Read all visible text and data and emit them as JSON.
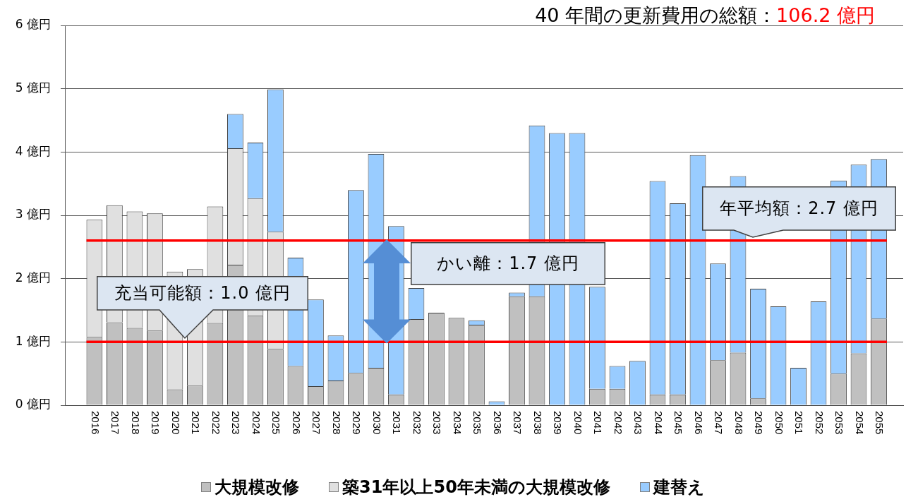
{
  "chart_data": {
    "type": "bar",
    "title": "40 年間の更新費用の総額：106.2 億円",
    "categories": [
      "2016",
      "2017",
      "2018",
      "2019",
      "2020",
      "2021",
      "2022",
      "2023",
      "2024",
      "2025",
      "2026",
      "2027",
      "2028",
      "2029",
      "2030",
      "2031",
      "2032",
      "2033",
      "2034",
      "2035",
      "2036",
      "2037",
      "2038",
      "2039",
      "2040",
      "2041",
      "2042",
      "2043",
      "2044",
      "2045",
      "2046",
      "2047",
      "2048",
      "2049",
      "2050",
      "2051",
      "2052",
      "2053",
      "2054",
      "2055"
    ],
    "series": [
      {
        "name": "大規模改修",
        "color": "#c0c0c0",
        "values": [
          1.08,
          1.31,
          1.22,
          1.18,
          0.25,
          0.31,
          1.3,
          2.22,
          1.42,
          0.89,
          0.62,
          0.3,
          0.39,
          0.51,
          0.59,
          0.17,
          1.36,
          1.46,
          1.38,
          1.27,
          null,
          1.72,
          1.72,
          null,
          null,
          0.26,
          0.26,
          null,
          0.17,
          0.17,
          null,
          0.71,
          0.83,
          0.11,
          null,
          null,
          null,
          0.5,
          0.82,
          1.37
        ]
      },
      {
        "name": "築31年以上50年未満の大規模改修",
        "color": "#e0e0e0",
        "values": [
          1.85,
          1.85,
          1.84,
          1.85,
          1.86,
          1.84,
          1.84,
          1.84,
          1.85,
          1.85,
          null,
          null,
          null,
          null,
          null,
          null,
          null,
          null,
          null,
          null,
          null,
          null,
          null,
          null,
          null,
          null,
          null,
          null,
          null,
          null,
          null,
          null,
          null,
          null,
          null,
          null,
          null,
          null,
          null,
          null
        ]
      },
      {
        "name": "建替え",
        "color": "#99ccff",
        "values": [
          null,
          null,
          null,
          null,
          null,
          null,
          null,
          0.54,
          0.88,
          2.25,
          1.71,
          1.37,
          0.71,
          2.89,
          3.38,
          2.66,
          0.49,
          null,
          null,
          0.07,
          0.06,
          0.06,
          2.7,
          4.3,
          4.3,
          1.61,
          0.36,
          0.7,
          3.37,
          3.02,
          3.95,
          1.53,
          2.79,
          1.73,
          1.56,
          0.59,
          1.64,
          3.05,
          2.98,
          2.52
        ]
      }
    ],
    "stacked": true,
    "ylim": [
      0,
      6
    ],
    "yticks": [
      {
        "value": 0,
        "label": "0 億円"
      },
      {
        "value": 1,
        "label": "1 億円"
      },
      {
        "value": 2,
        "label": "2 億円"
      },
      {
        "value": 3,
        "label": "3 億円"
      },
      {
        "value": 4,
        "label": "4 億円"
      },
      {
        "value": 5,
        "label": "5 億円"
      },
      {
        "value": 6,
        "label": "6 億円"
      }
    ],
    "grid": "y",
    "legend": "bottom",
    "ref_lines": [
      {
        "axis": "y",
        "value": 1.0,
        "label": "充当可能額：1.0 億円",
        "color": "#ff0000"
      },
      {
        "axis": "y",
        "value": 2.6,
        "label": "年平均額：2.7 億円",
        "color": "#ff0000"
      }
    ],
    "annotations": [
      "かい離：1.7 億円"
    ]
  }
}
